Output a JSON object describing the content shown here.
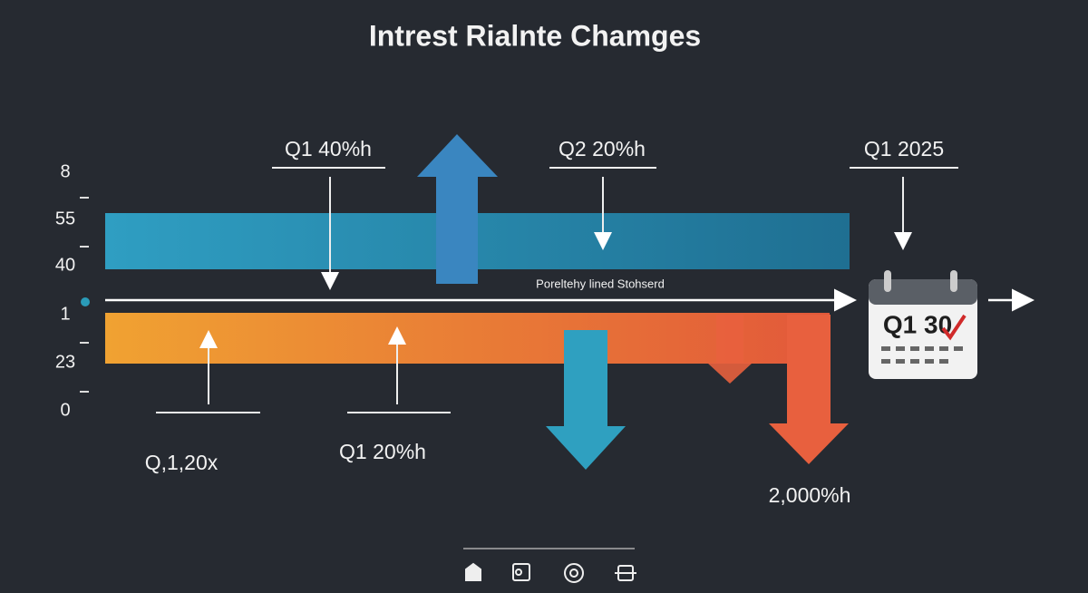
{
  "title": "Intrest Rialnte Chamges",
  "scale_labels": [
    "8",
    "55",
    "40",
    "1",
    "23",
    "0"
  ],
  "top_labels": [
    "Q1 40%h",
    "Q2 20%h",
    "Q1 2025"
  ],
  "bottom_labels": [
    "Q,1,20x",
    "Q1 20%h",
    "2,000%h"
  ],
  "line_label": "Poreltehy lined Stohserd",
  "calendar": "Q1 30"
}
